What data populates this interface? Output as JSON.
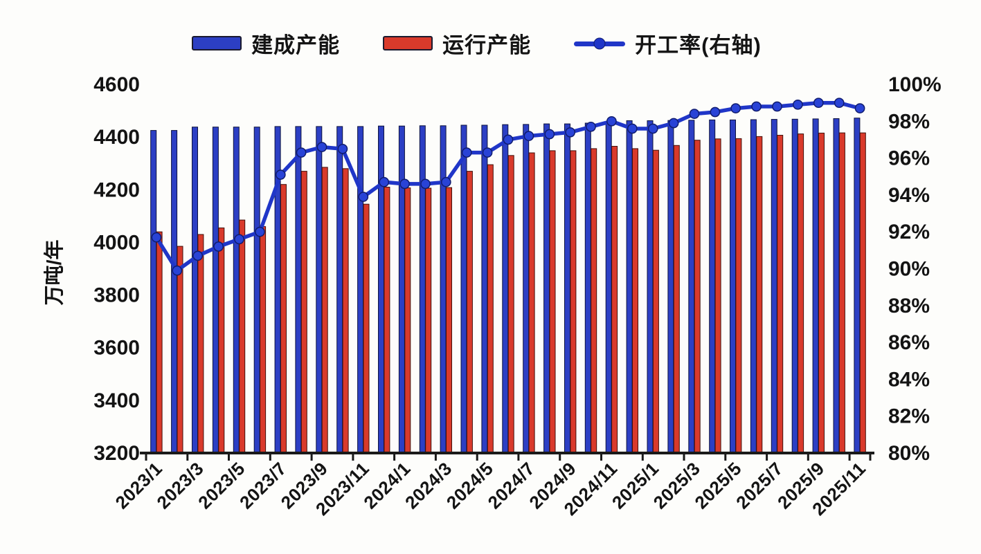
{
  "legend": {
    "items": [
      {
        "label": "建成产能",
        "type": "swatch",
        "color": "#2c3fc4"
      },
      {
        "label": "运行产能",
        "type": "swatch",
        "color": "#d93a2b"
      },
      {
        "label": "开工率(右轴)",
        "type": "line-marker",
        "color": "#2036c8"
      }
    ]
  },
  "chart_data": {
    "type": "combo-bar-line",
    "title": "",
    "legend_position": "top",
    "grid": false,
    "x_label_every": 2,
    "x_label_rotation": -45,
    "categories": [
      "2023/1",
      "2023/2",
      "2023/3",
      "2023/4",
      "2023/5",
      "2023/6",
      "2023/7",
      "2023/8",
      "2023/9",
      "2023/10",
      "2023/11",
      "2023/12",
      "2024/1",
      "2024/2",
      "2024/3",
      "2024/4",
      "2024/5",
      "2024/6",
      "2024/7",
      "2024/8",
      "2024/9",
      "2024/10",
      "2024/11",
      "2024/12",
      "2025/1",
      "2025/2",
      "2025/3",
      "2025/4",
      "2025/5",
      "2025/6",
      "2025/7",
      "2025/8",
      "2025/9",
      "2025/10",
      "2025/11"
    ],
    "series": [
      {
        "name": "建成产能",
        "type": "bar",
        "axis": "left",
        "color": "#2c3fc4",
        "values": [
          4425,
          4425,
          4438,
          4438,
          4438,
          4438,
          4440,
          4440,
          4440,
          4440,
          4440,
          4442,
          4442,
          4443,
          4443,
          4445,
          4445,
          4447,
          4448,
          4450,
          4450,
          4453,
          4457,
          4462,
          4462,
          4463,
          4464,
          4465,
          4465,
          4466,
          4467,
          4468,
          4469,
          4470,
          4472
        ]
      },
      {
        "name": "运行产能",
        "type": "bar",
        "axis": "left",
        "color": "#d93a2b",
        "values": [
          4040,
          3985,
          4030,
          4055,
          4085,
          4060,
          4220,
          4270,
          4285,
          4280,
          4145,
          4210,
          4207,
          4206,
          4208,
          4270,
          4295,
          4330,
          4340,
          4348,
          4348,
          4356,
          4365,
          4356,
          4350,
          4368,
          4388,
          4393,
          4394,
          4402,
          4407,
          4412,
          4415,
          4416,
          4416
        ]
      },
      {
        "name": "开工率(右轴)",
        "type": "line",
        "axis": "right",
        "color": "#2036c8",
        "values": [
          91.7,
          89.9,
          90.7,
          91.2,
          91.6,
          92.0,
          95.1,
          96.3,
          96.6,
          96.5,
          93.9,
          94.7,
          94.6,
          94.6,
          94.7,
          96.3,
          96.3,
          97.0,
          97.2,
          97.3,
          97.4,
          97.7,
          98.0,
          97.6,
          97.6,
          97.9,
          98.4,
          98.5,
          98.7,
          98.8,
          98.8,
          98.9,
          99.0,
          99.0,
          98.7
        ]
      }
    ],
    "left_axis": {
      "title": "万吨/年",
      "min": 3200,
      "max": 4600,
      "tick_step": 200,
      "ticks": [
        "4600",
        "4400",
        "4200",
        "4000",
        "3800",
        "3600",
        "3400",
        "3200"
      ]
    },
    "right_axis": {
      "title": "",
      "min": 80,
      "max": 100,
      "tick_step": 2,
      "ticks": [
        "100%",
        "98%",
        "96%",
        "94%",
        "92%",
        "90%",
        "88%",
        "86%",
        "84%",
        "82%",
        "80%"
      ]
    }
  }
}
